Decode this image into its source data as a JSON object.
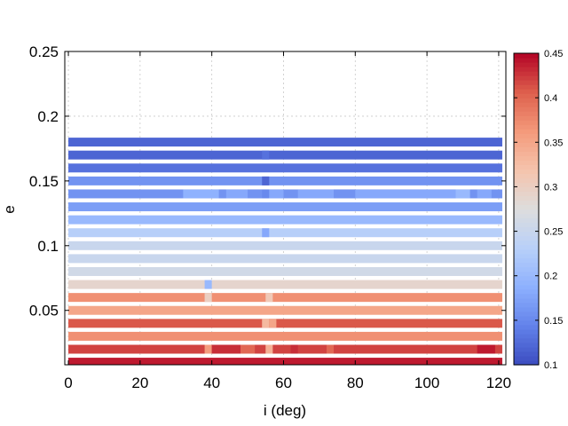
{
  "chart_data": {
    "type": "heatmap",
    "title": "",
    "xlabel": "i (deg)",
    "ylabel": "e",
    "xlim": [
      -1,
      122
    ],
    "ylim": [
      0.008,
      0.25
    ],
    "xticks": [
      0,
      20,
      40,
      60,
      80,
      100,
      120
    ],
    "xtick_labels": [
      "0",
      "20",
      "40",
      "60",
      "80",
      "100",
      "120"
    ],
    "yticks": [
      0.05,
      0.1,
      0.15,
      0.2,
      0.25
    ],
    "ytick_labels": [
      "0.05",
      "0.1",
      "0.15",
      "0.2",
      "0.25"
    ],
    "grid": true,
    "colorbar": {
      "colormap": "coolwarm",
      "range": [
        0.1,
        0.45
      ],
      "ticks": [
        0.1,
        0.15,
        0.2,
        0.25,
        0.3,
        0.35,
        0.4,
        0.45
      ],
      "tick_labels": [
        "0.1",
        "0.15",
        "0.2",
        "0.25",
        "0.3",
        "0.35",
        "0.4",
        "0.45"
      ]
    },
    "x_range": [
      0,
      121
    ],
    "rows": [
      {
        "e": 0.01,
        "value": 0.44,
        "segments": []
      },
      {
        "e": 0.02,
        "value": 0.42,
        "segments": [
          [
            38,
            40,
            0.36
          ],
          [
            40,
            48,
            0.43
          ],
          [
            48,
            52,
            0.4
          ],
          [
            55,
            57,
            0.34
          ],
          [
            62,
            64,
            0.43
          ],
          [
            72,
            74,
            0.4
          ],
          [
            114,
            119,
            0.44
          ]
        ]
      },
      {
        "e": 0.03,
        "value": 0.37,
        "segments": []
      },
      {
        "e": 0.04,
        "value": 0.41,
        "segments": [
          [
            54,
            56,
            0.33
          ],
          [
            56,
            58,
            0.35
          ]
        ]
      },
      {
        "e": 0.05,
        "value": 0.35,
        "segments": []
      },
      {
        "e": 0.06,
        "value": 0.37,
        "segments": [
          [
            38,
            40,
            0.3
          ],
          [
            55,
            57,
            0.31
          ]
        ]
      },
      {
        "e": 0.07,
        "value": 0.29,
        "segments": [
          [
            38,
            40,
            0.2
          ]
        ]
      },
      {
        "e": 0.08,
        "value": 0.26,
        "segments": []
      },
      {
        "e": 0.09,
        "value": 0.25,
        "segments": []
      },
      {
        "e": 0.1,
        "value": 0.25,
        "segments": []
      },
      {
        "e": 0.11,
        "value": 0.23,
        "segments": [
          [
            54,
            56,
            0.18
          ]
        ]
      },
      {
        "e": 0.12,
        "value": 0.2,
        "segments": []
      },
      {
        "e": 0.13,
        "value": 0.17,
        "segments": []
      },
      {
        "e": 0.14,
        "value": 0.16,
        "segments": [
          [
            32,
            42,
            0.19
          ],
          [
            42,
            44,
            0.16
          ],
          [
            44,
            50,
            0.18
          ],
          [
            50,
            54,
            0.16
          ],
          [
            54,
            56,
            0.15
          ],
          [
            56,
            60,
            0.18
          ],
          [
            64,
            74,
            0.18
          ],
          [
            74,
            80,
            0.16
          ],
          [
            80,
            108,
            0.18
          ],
          [
            108,
            112,
            0.2
          ],
          [
            114,
            118,
            0.18
          ]
        ]
      },
      {
        "e": 0.15,
        "value": 0.16,
        "segments": [
          [
            54,
            56,
            0.12
          ]
        ]
      },
      {
        "e": 0.16,
        "value": 0.13,
        "segments": []
      },
      {
        "e": 0.17,
        "value": 0.12,
        "segments": [
          [
            54,
            56,
            0.13
          ]
        ]
      },
      {
        "e": 0.18,
        "value": 0.12,
        "segments": []
      }
    ]
  }
}
